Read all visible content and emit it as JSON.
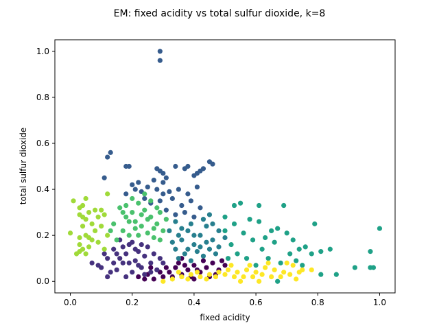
{
  "chart_data": {
    "type": "scatter",
    "title": "EM: fixed acidity vs total sulfur dioxide, k=8",
    "xlabel": "fixed acidity",
    "ylabel": "total sulfur dioxide",
    "xlim": [
      -0.05,
      1.05
    ],
    "ylim": [
      -0.05,
      1.05
    ],
    "xticks": [
      0.0,
      0.2,
      0.4,
      0.6,
      0.8,
      1.0
    ],
    "yticks": [
      0.0,
      0.2,
      0.4,
      0.6,
      0.8,
      1.0
    ],
    "xtick_labels": [
      "0.0",
      "0.2",
      "0.4",
      "0.6",
      "0.8",
      "1.0"
    ],
    "ytick_labels": [
      "0.0",
      "0.2",
      "0.4",
      "0.6",
      "0.8",
      "1.0"
    ],
    "grid": false,
    "legend": "none",
    "colormap": "viridis",
    "series": [
      {
        "cluster": 0,
        "color": "#440154",
        "points": [
          [
            0.22,
            0.02
          ],
          [
            0.25,
            0.03
          ],
          [
            0.28,
            0.05
          ],
          [
            0.3,
            0.02
          ],
          [
            0.32,
            0.04
          ],
          [
            0.34,
            0.06
          ],
          [
            0.36,
            0.03
          ],
          [
            0.38,
            0.05
          ],
          [
            0.4,
            0.07
          ],
          [
            0.42,
            0.04
          ],
          [
            0.44,
            0.06
          ],
          [
            0.46,
            0.08
          ],
          [
            0.48,
            0.05
          ],
          [
            0.5,
            0.07
          ],
          [
            0.27,
            0.01
          ],
          [
            0.31,
            0.06
          ],
          [
            0.35,
            0.08
          ],
          [
            0.39,
            0.02
          ],
          [
            0.43,
            0.09
          ],
          [
            0.47,
            0.03
          ],
          [
            0.29,
            0.04
          ],
          [
            0.33,
            0.02
          ],
          [
            0.37,
            0.07
          ],
          [
            0.41,
            0.05
          ],
          [
            0.45,
            0.02
          ],
          [
            0.26,
            0.06
          ],
          [
            0.24,
            0.01
          ],
          [
            0.49,
            0.09
          ],
          [
            0.36,
            0.1
          ],
          [
            0.4,
            0.01
          ]
        ]
      },
      {
        "cluster": 1,
        "color": "#46327e",
        "points": [
          [
            0.1,
            0.06
          ],
          [
            0.12,
            0.1
          ],
          [
            0.14,
            0.14
          ],
          [
            0.15,
            0.05
          ],
          [
            0.16,
            0.18
          ],
          [
            0.17,
            0.08
          ],
          [
            0.18,
            0.12
          ],
          [
            0.19,
            0.16
          ],
          [
            0.2,
            0.04
          ],
          [
            0.21,
            0.09
          ],
          [
            0.22,
            0.13
          ],
          [
            0.23,
            0.06
          ],
          [
            0.24,
            0.11
          ],
          [
            0.25,
            0.15
          ],
          [
            0.26,
            0.08
          ],
          [
            0.27,
            0.12
          ],
          [
            0.28,
            0.05
          ],
          [
            0.29,
            0.1
          ],
          [
            0.13,
            0.04
          ],
          [
            0.15,
            0.12
          ],
          [
            0.18,
            0.02
          ],
          [
            0.2,
            0.17
          ],
          [
            0.22,
            0.07
          ],
          [
            0.24,
            0.03
          ],
          [
            0.11,
            0.12
          ],
          [
            0.16,
            0.1
          ],
          [
            0.19,
            0.08
          ],
          [
            0.21,
            0.14
          ],
          [
            0.23,
            0.16
          ],
          [
            0.26,
            0.04
          ],
          [
            0.14,
            0.08
          ],
          [
            0.17,
            0.15
          ],
          [
            0.07,
            0.08
          ],
          [
            0.09,
            0.07
          ],
          [
            0.12,
            0.02
          ],
          [
            0.3,
            0.08
          ]
        ]
      },
      {
        "cluster": 2,
        "color": "#365c8d",
        "points": [
          [
            0.29,
            1.0
          ],
          [
            0.29,
            0.96
          ],
          [
            0.12,
            0.54
          ],
          [
            0.13,
            0.56
          ],
          [
            0.11,
            0.45
          ],
          [
            0.18,
            0.5
          ],
          [
            0.19,
            0.5
          ],
          [
            0.28,
            0.49
          ],
          [
            0.29,
            0.48
          ],
          [
            0.3,
            0.47
          ],
          [
            0.27,
            0.44
          ],
          [
            0.31,
            0.45
          ],
          [
            0.34,
            0.5
          ],
          [
            0.37,
            0.49
          ],
          [
            0.38,
            0.5
          ],
          [
            0.45,
            0.52
          ],
          [
            0.46,
            0.51
          ],
          [
            0.43,
            0.49
          ],
          [
            0.42,
            0.48
          ],
          [
            0.41,
            0.47
          ],
          [
            0.4,
            0.46
          ],
          [
            0.2,
            0.42
          ],
          [
            0.22,
            0.43
          ],
          [
            0.21,
            0.4
          ],
          [
            0.18,
            0.38
          ],
          [
            0.23,
            0.39
          ],
          [
            0.25,
            0.41
          ],
          [
            0.28,
            0.4
          ],
          [
            0.3,
            0.38
          ],
          [
            0.32,
            0.39
          ],
          [
            0.35,
            0.4
          ],
          [
            0.38,
            0.38
          ],
          [
            0.41,
            0.41
          ],
          [
            0.29,
            0.35
          ],
          [
            0.33,
            0.36
          ],
          [
            0.36,
            0.33
          ],
          [
            0.39,
            0.35
          ],
          [
            0.42,
            0.32
          ],
          [
            0.31,
            0.31
          ],
          [
            0.34,
            0.29
          ],
          [
            0.37,
            0.3
          ],
          [
            0.4,
            0.28
          ],
          [
            0.26,
            0.34
          ],
          [
            0.24,
            0.36
          ],
          [
            0.3,
            0.43
          ]
        ]
      },
      {
        "cluster": 3,
        "color": "#277f8e",
        "points": [
          [
            0.34,
            0.14
          ],
          [
            0.36,
            0.18
          ],
          [
            0.38,
            0.22
          ],
          [
            0.4,
            0.16
          ],
          [
            0.42,
            0.2
          ],
          [
            0.44,
            0.24
          ],
          [
            0.46,
            0.18
          ],
          [
            0.48,
            0.22
          ],
          [
            0.35,
            0.1
          ],
          [
            0.37,
            0.12
          ],
          [
            0.39,
            0.09
          ],
          [
            0.41,
            0.13
          ],
          [
            0.43,
            0.11
          ],
          [
            0.45,
            0.14
          ],
          [
            0.47,
            0.12
          ],
          [
            0.33,
            0.17
          ],
          [
            0.39,
            0.25
          ],
          [
            0.43,
            0.27
          ],
          [
            0.45,
            0.29
          ],
          [
            0.4,
            0.2
          ],
          [
            0.36,
            0.23
          ],
          [
            0.44,
            0.17
          ],
          [
            0.48,
            0.15
          ],
          [
            0.5,
            0.19
          ],
          [
            0.46,
            0.25
          ],
          [
            0.35,
            0.2
          ],
          [
            0.42,
            0.15
          ],
          [
            0.38,
            0.14
          ],
          [
            0.32,
            0.22
          ],
          [
            0.34,
            0.26
          ]
        ]
      },
      {
        "cluster": 4,
        "color": "#1fa187",
        "points": [
          [
            0.5,
            0.28
          ],
          [
            0.53,
            0.33
          ],
          [
            0.55,
            0.34
          ],
          [
            0.58,
            0.27
          ],
          [
            0.61,
            0.33
          ],
          [
            0.61,
            0.26
          ],
          [
            0.65,
            0.22
          ],
          [
            0.66,
            0.17
          ],
          [
            0.7,
            0.21
          ],
          [
            0.72,
            0.18
          ],
          [
            0.74,
            0.14
          ],
          [
            0.76,
            0.15
          ],
          [
            0.78,
            0.12
          ],
          [
            0.79,
            0.25
          ],
          [
            0.81,
            0.13
          ],
          [
            0.84,
            0.14
          ],
          [
            0.86,
            0.03
          ],
          [
            0.81,
            0.03
          ],
          [
            0.92,
            0.06
          ],
          [
            0.97,
            0.06
          ],
          [
            0.98,
            0.06
          ],
          [
            0.97,
            0.13
          ],
          [
            1.0,
            0.23
          ],
          [
            0.67,
            0.23
          ],
          [
            0.69,
            0.33
          ],
          [
            0.56,
            0.21
          ],
          [
            0.59,
            0.18
          ],
          [
            0.62,
            0.14
          ],
          [
            0.64,
            0.1
          ],
          [
            0.68,
            0.08
          ],
          [
            0.71,
            0.12
          ],
          [
            0.73,
            0.09
          ],
          [
            0.52,
            0.16
          ],
          [
            0.54,
            0.12
          ],
          [
            0.57,
            0.1
          ],
          [
            0.6,
            0.07
          ],
          [
            0.63,
            0.19
          ],
          [
            0.75,
            0.07
          ],
          [
            0.67,
            0.0
          ],
          [
            0.5,
            0.22
          ],
          [
            0.53,
            0.25
          ],
          [
            0.51,
            0.1
          ]
        ]
      },
      {
        "cluster": 5,
        "color": "#4ac16d",
        "points": [
          [
            0.14,
            0.25
          ],
          [
            0.16,
            0.32
          ],
          [
            0.17,
            0.22
          ],
          [
            0.18,
            0.28
          ],
          [
            0.19,
            0.2
          ],
          [
            0.2,
            0.3
          ],
          [
            0.21,
            0.26
          ],
          [
            0.22,
            0.34
          ],
          [
            0.23,
            0.24
          ],
          [
            0.24,
            0.31
          ],
          [
            0.25,
            0.21
          ],
          [
            0.26,
            0.28
          ],
          [
            0.27,
            0.19
          ],
          [
            0.28,
            0.25
          ],
          [
            0.29,
            0.3
          ],
          [
            0.3,
            0.22
          ],
          [
            0.31,
            0.27
          ],
          [
            0.22,
            0.2
          ],
          [
            0.24,
            0.38
          ],
          [
            0.26,
            0.35
          ],
          [
            0.2,
            0.36
          ],
          [
            0.18,
            0.33
          ],
          [
            0.15,
            0.18
          ],
          [
            0.13,
            0.22
          ],
          [
            0.21,
            0.23
          ],
          [
            0.25,
            0.27
          ],
          [
            0.28,
            0.32
          ],
          [
            0.23,
            0.29
          ],
          [
            0.19,
            0.26
          ],
          [
            0.29,
            0.18
          ],
          [
            0.27,
            0.23
          ],
          [
            0.17,
            0.3
          ]
        ]
      },
      {
        "cluster": 6,
        "color": "#a0da39",
        "points": [
          [
            0.0,
            0.21
          ],
          [
            0.01,
            0.35
          ],
          [
            0.03,
            0.32
          ],
          [
            0.04,
            0.33
          ],
          [
            0.05,
            0.36
          ],
          [
            0.03,
            0.29
          ],
          [
            0.04,
            0.28
          ],
          [
            0.05,
            0.27
          ],
          [
            0.06,
            0.3
          ],
          [
            0.07,
            0.25
          ],
          [
            0.08,
            0.31
          ],
          [
            0.09,
            0.28
          ],
          [
            0.1,
            0.31
          ],
          [
            0.11,
            0.29
          ],
          [
            0.12,
            0.38
          ],
          [
            0.03,
            0.19
          ],
          [
            0.05,
            0.2
          ],
          [
            0.06,
            0.19
          ],
          [
            0.03,
            0.16
          ],
          [
            0.04,
            0.14
          ],
          [
            0.06,
            0.15
          ],
          [
            0.05,
            0.12
          ],
          [
            0.03,
            0.13
          ],
          [
            0.08,
            0.22
          ],
          [
            0.1,
            0.24
          ],
          [
            0.07,
            0.18
          ],
          [
            0.12,
            0.2
          ],
          [
            0.09,
            0.17
          ],
          [
            0.11,
            0.14
          ],
          [
            0.04,
            0.24
          ],
          [
            0.02,
            0.12
          ]
        ]
      },
      {
        "cluster": 7,
        "color": "#fde725",
        "points": [
          [
            0.33,
            0.01
          ],
          [
            0.36,
            0.02
          ],
          [
            0.39,
            0.03
          ],
          [
            0.42,
            0.02
          ],
          [
            0.45,
            0.03
          ],
          [
            0.48,
            0.04
          ],
          [
            0.51,
            0.05
          ],
          [
            0.54,
            0.04
          ],
          [
            0.57,
            0.05
          ],
          [
            0.6,
            0.04
          ],
          [
            0.63,
            0.06
          ],
          [
            0.66,
            0.05
          ],
          [
            0.69,
            0.04
          ],
          [
            0.72,
            0.07
          ],
          [
            0.75,
            0.05
          ],
          [
            0.78,
            0.05
          ],
          [
            0.35,
            0.04
          ],
          [
            0.38,
            0.01
          ],
          [
            0.41,
            0.04
          ],
          [
            0.44,
            0.01
          ],
          [
            0.47,
            0.02
          ],
          [
            0.5,
            0.03
          ],
          [
            0.53,
            0.02
          ],
          [
            0.56,
            0.02
          ],
          [
            0.59,
            0.02
          ],
          [
            0.62,
            0.03
          ],
          [
            0.65,
            0.02
          ],
          [
            0.68,
            0.02
          ],
          [
            0.71,
            0.03
          ],
          [
            0.74,
            0.04
          ],
          [
            0.3,
            0.0
          ],
          [
            0.52,
            0.07
          ],
          [
            0.58,
            0.07
          ],
          [
            0.64,
            0.08
          ],
          [
            0.7,
            0.08
          ],
          [
            0.73,
            0.01
          ],
          [
            0.61,
            0.0
          ],
          [
            0.55,
            0.0
          ]
        ]
      }
    ]
  }
}
